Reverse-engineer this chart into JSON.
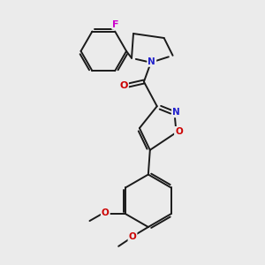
{
  "bg_color": "#ebebeb",
  "bond_color": "#1a1a1a",
  "lw": 1.4,
  "atom_colors": {
    "N": "#2222cc",
    "O": "#cc0000",
    "F": "#cc00cc"
  },
  "figsize": [
    3.0,
    3.0
  ],
  "dpi": 100
}
